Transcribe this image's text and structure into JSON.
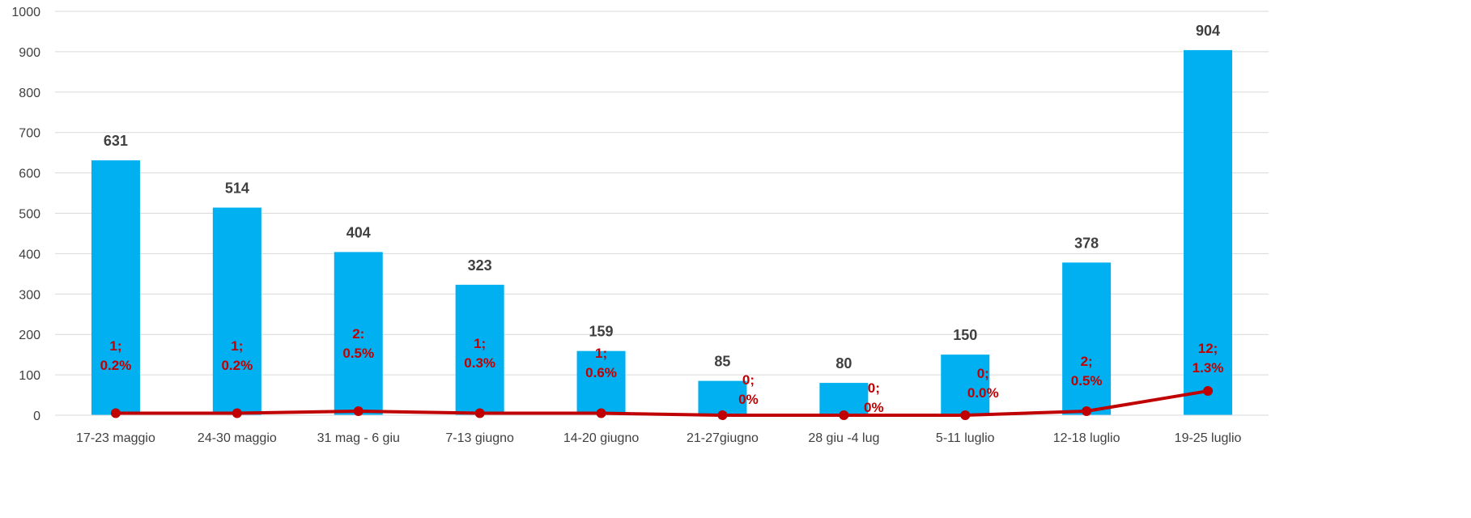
{
  "chart_data": {
    "type": "bar",
    "categories": [
      "17-23 maggio",
      "24-30 maggio",
      "31 mag - 6 giu",
      "7-13 giugno",
      "14-20 giugno",
      "21-27giugno",
      "28 giu -4 lug",
      "5-11 luglio",
      "12-18 luglio",
      "19-25 luglio"
    ],
    "ylim": [
      0,
      1000
    ],
    "yticks": [
      0,
      100,
      200,
      300,
      400,
      500,
      600,
      700,
      800,
      900,
      1000
    ],
    "grid": true,
    "legend": "none",
    "series": [
      {
        "type": "bar",
        "color": "#00b0f0",
        "values": [
          631,
          514,
          404,
          323,
          159,
          85,
          80,
          150,
          378,
          904
        ],
        "data_labels": [
          "631",
          "514",
          "404",
          "323",
          "159",
          "85",
          "80",
          "150",
          "378",
          "904"
        ]
      },
      {
        "type": "line",
        "color": "#c00000",
        "values": [
          5,
          5,
          10,
          5,
          5,
          0,
          0,
          0,
          10,
          60
        ],
        "data_labels": [
          [
            "1;",
            "0.2%"
          ],
          [
            "1;",
            "0.2%"
          ],
          [
            "2:",
            "0.5%"
          ],
          [
            "1;",
            "0.3%"
          ],
          [
            "1;",
            "0.6%"
          ],
          [
            "0;",
            "0%"
          ],
          [
            "0;",
            "0%"
          ],
          [
            "0;",
            "0.0%"
          ],
          [
            "2;",
            "0.5%"
          ],
          [
            "12;",
            "1.3%"
          ]
        ]
      }
    ]
  }
}
